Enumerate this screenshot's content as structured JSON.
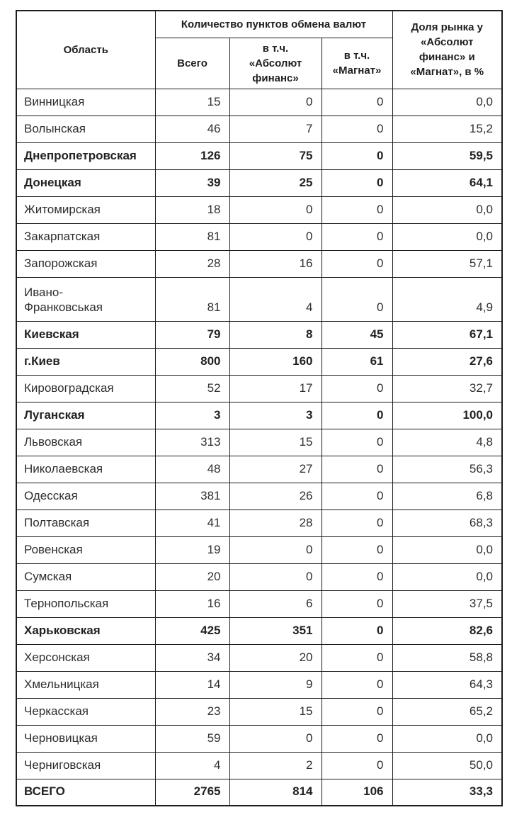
{
  "page": {
    "background": "#ffffff"
  },
  "table": {
    "border_color": "#1c1c1c",
    "text_color": "#2e2e2e",
    "header": {
      "region_label": "Область",
      "group_label": "Количество пунктов обмена валют",
      "total_label": "Всего",
      "absolut_label": "в т.ч.\n«Абсолют\nфинанс»",
      "magnat_label": "в т.ч.\n«Магнат»",
      "share_label": "Доля рынка у\n«Абсолют\nфинанс» и\n«Магнат», в %"
    },
    "rows": [
      {
        "region": "Винницкая",
        "total": "15",
        "absolut": "0",
        "magnat": "0",
        "share": "0,0",
        "bold": false,
        "tall": false
      },
      {
        "region": "Волынская",
        "total": "46",
        "absolut": "7",
        "magnat": "0",
        "share": "15,2",
        "bold": false,
        "tall": false
      },
      {
        "region": "Днепропетровская",
        "total": "126",
        "absolut": "75",
        "magnat": "0",
        "share": "59,5",
        "bold": true,
        "tall": false
      },
      {
        "region": "Донецкая",
        "total": "39",
        "absolut": "25",
        "magnat": "0",
        "share": "64,1",
        "bold": true,
        "tall": false
      },
      {
        "region": "Житомирская",
        "total": "18",
        "absolut": "0",
        "magnat": "0",
        "share": "0,0",
        "bold": false,
        "tall": false
      },
      {
        "region": "Закарпатская",
        "total": "81",
        "absolut": "0",
        "magnat": "0",
        "share": "0,0",
        "bold": false,
        "tall": false
      },
      {
        "region": "Запорожская",
        "total": "28",
        "absolut": "16",
        "magnat": "0",
        "share": "57,1",
        "bold": false,
        "tall": false
      },
      {
        "region": "Ивано-\nФранковськая",
        "total": "81",
        "absolut": "4",
        "magnat": "0",
        "share": "4,9",
        "bold": false,
        "tall": true
      },
      {
        "region": "Киевская",
        "total": "79",
        "absolut": "8",
        "magnat": "45",
        "share": "67,1",
        "bold": true,
        "tall": false
      },
      {
        "region": "г.Киев",
        "total": "800",
        "absolut": "160",
        "magnat": "61",
        "share": "27,6",
        "bold": true,
        "tall": false
      },
      {
        "region": "Кировоградская",
        "total": "52",
        "absolut": "17",
        "magnat": "0",
        "share": "32,7",
        "bold": false,
        "tall": false
      },
      {
        "region": "Луганская",
        "total": "3",
        "absolut": "3",
        "magnat": "0",
        "share": "100,0",
        "bold": true,
        "tall": false
      },
      {
        "region": "Львовская",
        "total": "313",
        "absolut": "15",
        "magnat": "0",
        "share": "4,8",
        "bold": false,
        "tall": false
      },
      {
        "region": "Николаевская",
        "total": "48",
        "absolut": "27",
        "magnat": "0",
        "share": "56,3",
        "bold": false,
        "tall": false
      },
      {
        "region": "Одесская",
        "total": "381",
        "absolut": "26",
        "magnat": "0",
        "share": "6,8",
        "bold": false,
        "tall": false
      },
      {
        "region": "Полтавская",
        "total": "41",
        "absolut": "28",
        "magnat": "0",
        "share": "68,3",
        "bold": false,
        "tall": false
      },
      {
        "region": "Ровенская",
        "total": "19",
        "absolut": "0",
        "magnat": "0",
        "share": "0,0",
        "bold": false,
        "tall": false
      },
      {
        "region": "Сумская",
        "total": "20",
        "absolut": "0",
        "magnat": "0",
        "share": "0,0",
        "bold": false,
        "tall": false
      },
      {
        "region": "Тернопольская",
        "total": "16",
        "absolut": "6",
        "magnat": "0",
        "share": "37,5",
        "bold": false,
        "tall": false
      },
      {
        "region": "Харьковская",
        "total": "425",
        "absolut": "351",
        "magnat": "0",
        "share": "82,6",
        "bold": true,
        "tall": false
      },
      {
        "region": "Херсонская",
        "total": "34",
        "absolut": "20",
        "magnat": "0",
        "share": "58,8",
        "bold": false,
        "tall": false
      },
      {
        "region": "Хмельницкая",
        "total": "14",
        "absolut": "9",
        "magnat": "0",
        "share": "64,3",
        "bold": false,
        "tall": false
      },
      {
        "region": "Черкасская",
        "total": "23",
        "absolut": "15",
        "magnat": "0",
        "share": "65,2",
        "bold": false,
        "tall": false
      },
      {
        "region": "Черновицкая",
        "total": "59",
        "absolut": "0",
        "magnat": "0",
        "share": "0,0",
        "bold": false,
        "tall": false
      },
      {
        "region": "Черниговская",
        "total": "4",
        "absolut": "2",
        "magnat": "0",
        "share": "50,0",
        "bold": false,
        "tall": false
      },
      {
        "region": "ВСЕГО",
        "total": "2765",
        "absolut": "814",
        "magnat": "106",
        "share": "33,3",
        "bold": true,
        "tall": false
      }
    ]
  }
}
